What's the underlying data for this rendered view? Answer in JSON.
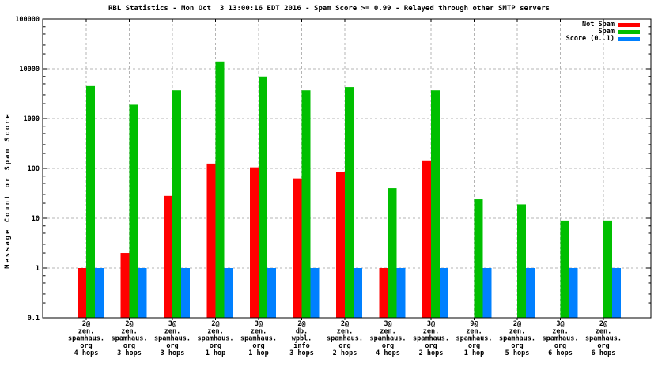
{
  "chart_data": {
    "type": "bar",
    "title": "RBL Statistics - Mon Oct  3 13:00:16 EDT 2016 - Spam Score >= 0.99 - Relayed through other SMTP servers",
    "ylabel": "Message Count or Spam Score",
    "xlabel": "",
    "yscale": "log",
    "ylim": [
      0.1,
      100000
    ],
    "yticks": [
      "100000",
      "10000",
      "1000",
      "100",
      "10",
      "1",
      "0.1"
    ],
    "grid": true,
    "legend_position": "top-right",
    "categories": [
      [
        "2@",
        "zen.",
        "spamhaus.",
        "org",
        "4 hops"
      ],
      [
        "2@",
        "zen.",
        "spamhaus.",
        "org",
        "3 hops"
      ],
      [
        "3@",
        "zen.",
        "spamhaus.",
        "org",
        "3 hops"
      ],
      [
        "2@",
        "zen.",
        "spamhaus.",
        "org",
        "1 hop"
      ],
      [
        "3@",
        "zen.",
        "spamhaus.",
        "org",
        "1 hop"
      ],
      [
        "2@",
        "db.",
        "wpbl.",
        "info",
        "3 hops"
      ],
      [
        "2@",
        "zen.",
        "spamhaus.",
        "org",
        "2 hops"
      ],
      [
        "3@",
        "zen.",
        "spamhaus.",
        "org",
        "4 hops"
      ],
      [
        "3@",
        "zen.",
        "spamhaus.",
        "org",
        "2 hops"
      ],
      [
        "9@",
        "zen.",
        "spamhaus.",
        "org",
        "1 hop"
      ],
      [
        "2@",
        "zen.",
        "spamhaus.",
        "org",
        "5 hops"
      ],
      [
        "3@",
        "zen.",
        "spamhaus.",
        "org",
        "6 hops"
      ],
      [
        "2@",
        "zen.",
        "spamhaus.",
        "org",
        "6 hops"
      ]
    ],
    "series": [
      {
        "name": "Not Spam",
        "color": "#ff0000",
        "values": [
          1,
          2,
          28,
          125,
          105,
          63,
          85,
          1,
          140,
          null,
          null,
          null,
          null
        ]
      },
      {
        "name": "Spam",
        "color": "#00bf00",
        "values": [
          4500,
          1900,
          3700,
          14000,
          7000,
          3700,
          4300,
          40,
          3700,
          24,
          19,
          9,
          9
        ]
      },
      {
        "name": "Score (0..1)",
        "color": "#0080ff",
        "values": [
          1,
          1,
          1,
          1,
          1,
          1,
          1,
          1,
          1,
          1,
          1,
          1,
          1
        ]
      }
    ],
    "colors": {
      "grid": "#b4b4b4",
      "axis": "#000000",
      "text": "#000000",
      "background": "#ffffff"
    }
  }
}
